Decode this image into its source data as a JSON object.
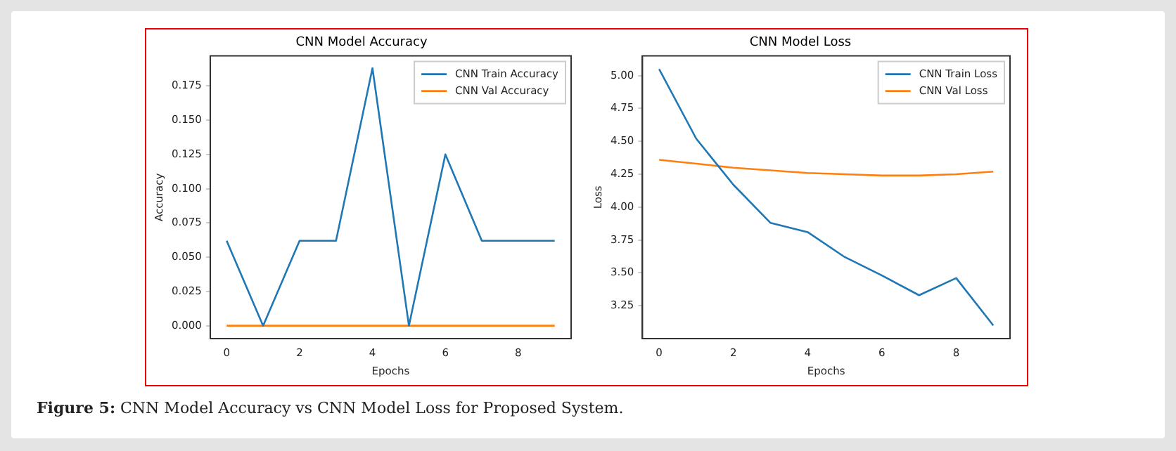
{
  "chart_data": [
    {
      "type": "line",
      "title": "CNN Model Accuracy",
      "xlabel": "Epochs",
      "ylabel": "Accuracy",
      "x": [
        0,
        1,
        2,
        3,
        4,
        5,
        6,
        7,
        8,
        9
      ],
      "series": [
        {
          "name": "CNN Train Accuracy",
          "color": "#1f77b4",
          "values": [
            0.062,
            0,
            0.062,
            0.062,
            0.188,
            0,
            0.125,
            0.062,
            0.062,
            0.062
          ]
        },
        {
          "name": "CNN Val Accuracy",
          "color": "#ff7f0e",
          "values": [
            0,
            0,
            0,
            0,
            0,
            0,
            0,
            0,
            0,
            0
          ]
        }
      ],
      "xlim": [
        -0.45,
        9.45
      ],
      "xticks": [
        0,
        2,
        4,
        6,
        8
      ],
      "ylim": [
        -0.0094,
        0.1969
      ],
      "yticks": [
        {
          "value": 0,
          "label": "0.000"
        },
        0.025,
        {
          "value": 0.05,
          "label": "0.050"
        },
        0.075,
        {
          "value": 0.1,
          "label": "0.100"
        },
        0.125,
        {
          "value": 0.15,
          "label": "0.150"
        },
        0.175
      ],
      "legend": "top right",
      "marker": "none",
      "annotations": [
        "Figure 5: CNN Model Accuracy vs CNN Model Loss for Proposed System."
      ]
    },
    {
      "type": "line",
      "title": "CNN Model Loss",
      "xlabel": "Epochs",
      "ylabel": "Loss",
      "x": [
        0,
        1,
        2,
        3,
        4,
        5,
        6,
        7,
        8,
        9
      ],
      "series": [
        {
          "name": "CNN Train Loss",
          "color": "#1f77b4",
          "values": [
            5.05,
            4.52,
            4.17,
            3.88,
            3.81,
            3.62,
            3.48,
            3.33,
            3.46,
            3.1
          ]
        },
        {
          "name": "CNN Val Loss",
          "color": "#ff7f0e",
          "values": [
            4.36,
            4.33,
            4.3,
            4.28,
            4.26,
            4.25,
            4.24,
            4.24,
            4.25,
            4.27
          ]
        }
      ],
      "xlim": [
        -0.45,
        9.45
      ],
      "xticks": [
        0,
        2,
        4,
        6,
        8
      ],
      "ylim": [
        3.0,
        5.15
      ],
      "yticks": [
        3.25,
        {
          "value": 3.5,
          "label": "3.50"
        },
        3.75,
        {
          "value": 4,
          "label": "4.00"
        },
        4.25,
        {
          "value": 4.5,
          "label": "4.50"
        },
        4.75,
        {
          "value": 5,
          "label": "5.00"
        }
      ],
      "legend": "top right",
      "marker": "none"
    }
  ]
}
